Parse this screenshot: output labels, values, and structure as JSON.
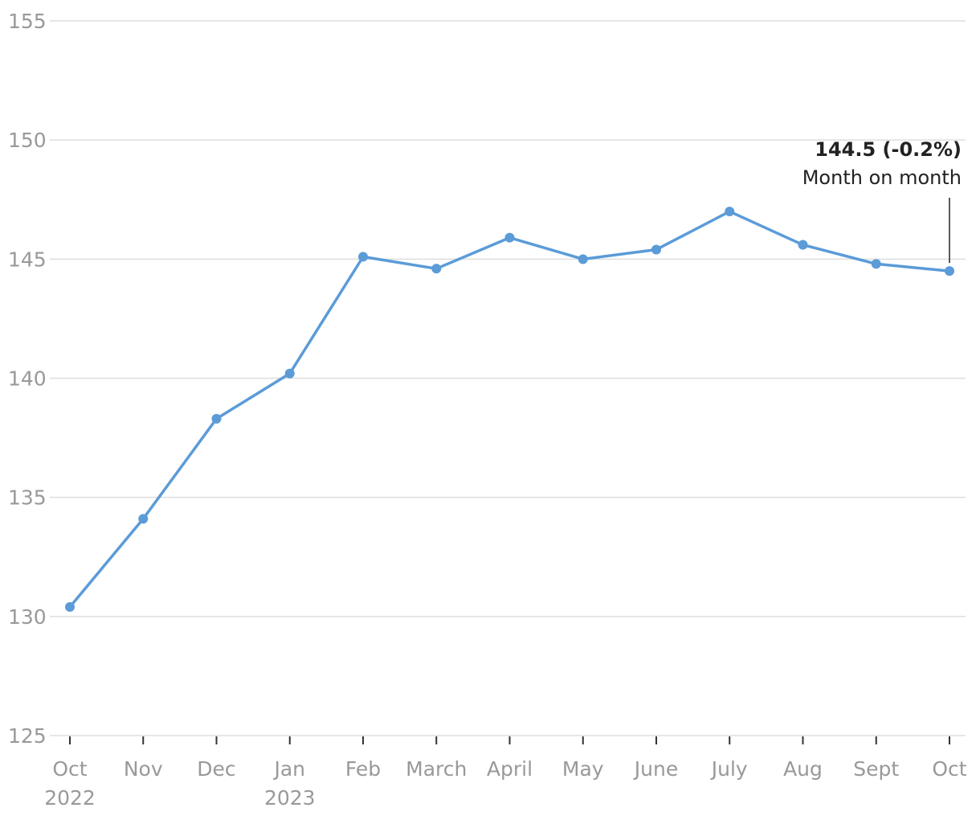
{
  "chart_data": {
    "type": "line",
    "categories": [
      "Oct 2022",
      "Nov",
      "Dec",
      "Jan 2023",
      "Feb",
      "March",
      "April",
      "May",
      "June",
      "July",
      "Aug",
      "Sept",
      "Oct"
    ],
    "values": [
      130.4,
      134.1,
      138.3,
      140.2,
      145.1,
      144.6,
      145.9,
      145.0,
      145.4,
      147.0,
      145.6,
      144.8,
      144.5
    ],
    "color": "#5b9bd8",
    "ylim": [
      125,
      155
    ],
    "yticks": [
      125,
      130,
      135,
      140,
      145,
      150,
      155
    ],
    "grid": true,
    "annotation": {
      "label": "144.5 (-0.2%)",
      "text": "Month on month"
    }
  }
}
